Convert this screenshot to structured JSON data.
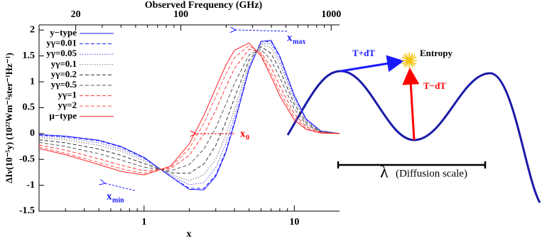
{
  "chart_data": {
    "type": "line",
    "title": "Observed Frequency (GHz)",
    "xlabel": "x",
    "ylabel": "ΔIν(10⁻⁵y) (10²²Wm⁻²ster⁻¹Hz⁻¹)",
    "xscale": "log",
    "x": [
      0.2,
      0.3,
      0.5,
      0.7,
      1,
      1.5,
      2,
      2.5,
      3,
      3.5,
      4,
      5,
      6,
      7,
      8,
      10,
      12,
      15,
      20
    ],
    "xlim": [
      0.2,
      20
    ],
    "xticks": [
      1,
      10
    ],
    "xminorticks": [
      0.3,
      0.4,
      0.5,
      0.6,
      0.7,
      0.8,
      0.9,
      2,
      3,
      4,
      5,
      6,
      7,
      8,
      9
    ],
    "x2lim": [
      11.4,
      1136
    ],
    "x2ticks": [
      20,
      100,
      1000
    ],
    "x2minorticks": [
      30,
      40,
      50,
      60,
      70,
      80,
      90,
      200,
      300,
      400,
      500,
      600,
      700,
      800,
      900
    ],
    "ylim": [
      -1.5,
      2.1
    ],
    "yticks": [
      -1.5,
      -1,
      -0.5,
      0,
      0.5,
      1,
      1.5,
      2
    ],
    "legend": "upper left",
    "series": [
      {
        "name": "y−type",
        "color": "#1a1aff",
        "dash": "solid",
        "values": [
          -0.02,
          -0.05,
          -0.13,
          -0.25,
          -0.46,
          -0.83,
          -1.08,
          -1.09,
          -0.83,
          -0.37,
          0.2,
          1.24,
          1.78,
          1.8,
          1.5,
          0.74,
          0.28,
          0.05,
          0
        ]
      },
      {
        "name": "yγ=0.01",
        "color": "#1a1aff",
        "dash": "dashed",
        "values": [
          -0.03,
          -0.06,
          -0.14,
          -0.26,
          -0.47,
          -0.83,
          -1.06,
          -1.06,
          -0.8,
          -0.34,
          0.23,
          1.25,
          1.78,
          1.78,
          1.48,
          0.73,
          0.27,
          0.05,
          0
        ]
      },
      {
        "name": "yγ=0.05",
        "color": "#4a4aff",
        "dash": "dotted",
        "values": [
          -0.05,
          -0.08,
          -0.18,
          -0.3,
          -0.49,
          -0.81,
          -0.99,
          -0.95,
          -0.66,
          -0.2,
          0.34,
          1.29,
          1.75,
          1.73,
          1.42,
          0.69,
          0.26,
          0.04,
          0
        ]
      },
      {
        "name": "yγ=0.1",
        "color": "#777777",
        "dash": "dotted",
        "values": [
          -0.08,
          -0.12,
          -0.23,
          -0.34,
          -0.53,
          -0.79,
          -0.91,
          -0.8,
          -0.49,
          -0.03,
          0.48,
          1.34,
          1.73,
          1.66,
          1.34,
          0.65,
          0.24,
          0.04,
          0
        ]
      },
      {
        "name": "yγ=0.2",
        "color": "#333333",
        "dash": "dashed",
        "values": [
          -0.12,
          -0.18,
          -0.3,
          -0.42,
          -0.58,
          -0.76,
          -0.77,
          -0.59,
          -0.23,
          0.22,
          0.69,
          1.42,
          1.68,
          1.55,
          1.23,
          0.57,
          0.21,
          0.03,
          0
        ]
      },
      {
        "name": "yγ=0.5",
        "color": "#555555",
        "dash": "dashed",
        "values": [
          -0.17,
          -0.25,
          -0.39,
          -0.51,
          -0.65,
          -0.72,
          -0.6,
          -0.3,
          0.11,
          0.56,
          0.97,
          1.52,
          1.63,
          1.42,
          1.08,
          0.48,
          0.17,
          0.03,
          0
        ]
      },
      {
        "name": "yγ=1",
        "color": "#ff3333",
        "dash": "dashed",
        "values": [
          -0.22,
          -0.32,
          -0.49,
          -0.61,
          -0.72,
          -0.68,
          -0.42,
          -0.01,
          0.45,
          0.9,
          1.26,
          1.63,
          1.57,
          1.28,
          0.92,
          0.38,
          0.13,
          0.02,
          0
        ]
      },
      {
        "name": "yγ=2",
        "color": "#ff5555",
        "dash": "dashed",
        "values": [
          -0.26,
          -0.38,
          -0.56,
          -0.68,
          -0.77,
          -0.65,
          -0.29,
          0.2,
          0.71,
          1.15,
          1.47,
          1.7,
          1.53,
          1.17,
          0.81,
          0.31,
          0.1,
          0.01,
          0
        ]
      },
      {
        "name": "μ−type",
        "color": "#ff2222",
        "dash": "solid",
        "values": [
          -0.29,
          -0.41,
          -0.6,
          -0.73,
          -0.8,
          -0.63,
          -0.2,
          0.35,
          0.88,
          1.32,
          1.61,
          1.75,
          1.5,
          1.1,
          0.73,
          0.26,
          0.08,
          0.01,
          0
        ]
      }
    ],
    "annotations": [
      {
        "label": "x",
        "subscript": "max",
        "color": "#1a1aff"
      },
      {
        "label": "x",
        "subscript": "0",
        "color": "#ff0000"
      },
      {
        "label": "x",
        "subscript": "min",
        "color": "#1a1aff"
      }
    ]
  },
  "diagram": {
    "labels": [
      "T+dT",
      "Entropy",
      "T−dT"
    ],
    "scale_symbol": "λ",
    "scale_text": "(Diffusion scale)"
  }
}
